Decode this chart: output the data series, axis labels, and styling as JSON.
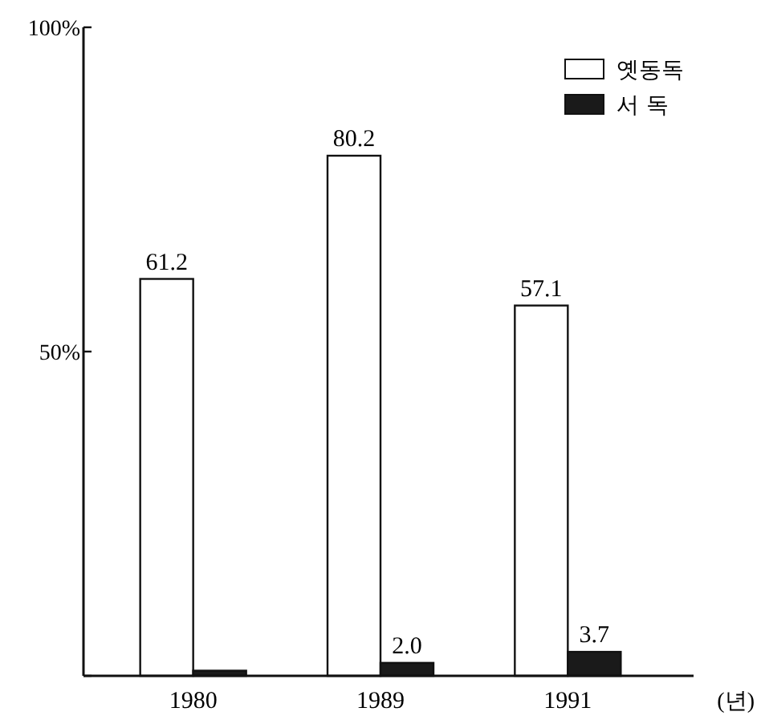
{
  "chart_data": {
    "type": "bar",
    "categories": [
      "1980",
      "1989",
      "1991"
    ],
    "xlabel": "(년)",
    "ylim": [
      0,
      100
    ],
    "yticks": [
      {
        "value": 0,
        "label": null
      },
      {
        "value": 50,
        "label": "50%"
      },
      {
        "value": 100,
        "label": "100%"
      }
    ],
    "legend": "top right",
    "grid": false,
    "series": [
      {
        "name": "옛동독",
        "color": "#ffffff",
        "values": [
          61.2,
          80.2,
          57.1
        ],
        "value_labels": [
          "61.2",
          "80.2",
          "57.1"
        ]
      },
      {
        "name": "서 독",
        "color": "#1a1a1a",
        "values": [
          0.8,
          2.0,
          3.7
        ],
        "value_labels": [
          null,
          "2.0",
          "3.7"
        ]
      }
    ]
  }
}
